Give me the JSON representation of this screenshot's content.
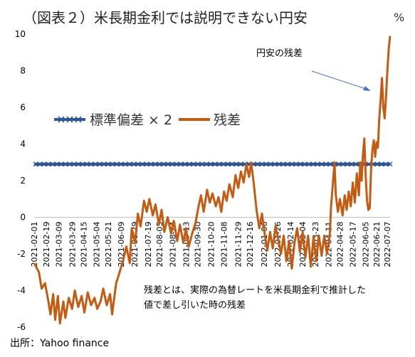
{
  "chart_data": {
    "type": "line",
    "title": "（図表２）米長期金利では説明できない円安",
    "unit": "%",
    "ylim": [
      -6,
      10
    ],
    "yticks": [
      "10",
      "8",
      "6",
      "4",
      "2",
      "0",
      "-2",
      "-4",
      "-6"
    ],
    "x_tick_labels": [
      "2021-02-01",
      "2021-02-19",
      "2021-03-09",
      "2021-03-29",
      "2021-04-15",
      "2021-05-04",
      "2021-05-21",
      "2021-06-09",
      "2021-06-29",
      "2021-07-19",
      "2021-08-05",
      "2021-08-24",
      "2021-09-13",
      "2021-09-30",
      "2021-10-20",
      "2021-11-08",
      "2021-11-29",
      "2021-12-16",
      "2022-01-06",
      "2022-01-26",
      "2022-02-14",
      "2022-03-04",
      "2022-03-23",
      "2022-04-11",
      "2022-04-28",
      "2022-05-17",
      "2022-06-05",
      "2022-06-21",
      "2022-07-07"
    ],
    "legend": {
      "placement": "upper-left"
    },
    "series": [
      {
        "name": "標準偏差 × 2",
        "color": "#2E5597",
        "marker": "x",
        "values": [
          2.9,
          2.9
        ]
      },
      {
        "name": "残差",
        "color": "#C55A11",
        "points": [
          [
            "2021-02-01",
            -2.5
          ],
          [
            "2021-02-08",
            -3.0
          ],
          [
            "2021-02-12",
            -3.9
          ],
          [
            "2021-02-17",
            -3.6
          ],
          [
            "2021-02-22",
            -4.6
          ],
          [
            "2021-02-25",
            -5.3
          ],
          [
            "2021-03-01",
            -4.2
          ],
          [
            "2021-03-04",
            -5.6
          ],
          [
            "2021-03-08",
            -4.3
          ],
          [
            "2021-03-11",
            -5.8
          ],
          [
            "2021-03-16",
            -4.6
          ],
          [
            "2021-03-19",
            -5.5
          ],
          [
            "2021-03-24",
            -4.4
          ],
          [
            "2021-03-29",
            -5.0
          ],
          [
            "2021-04-02",
            -4.0
          ],
          [
            "2021-04-07",
            -4.9
          ],
          [
            "2021-04-12",
            -4.3
          ],
          [
            "2021-04-16",
            -5.2
          ],
          [
            "2021-04-21",
            -4.1
          ],
          [
            "2021-04-26",
            -4.8
          ],
          [
            "2021-05-01",
            -4.4
          ],
          [
            "2021-05-05",
            -5.0
          ],
          [
            "2021-05-10",
            -4.6
          ],
          [
            "2021-05-14",
            -3.9
          ],
          [
            "2021-05-19",
            -4.8
          ],
          [
            "2021-05-24",
            -4.2
          ],
          [
            "2021-05-27",
            -5.3
          ],
          [
            "2021-06-02",
            -3.6
          ],
          [
            "2021-06-07",
            -3.0
          ],
          [
            "2021-06-12",
            -2.4
          ],
          [
            "2021-06-17",
            -1.6
          ],
          [
            "2021-06-22",
            -2.5
          ],
          [
            "2021-06-25",
            -0.6
          ],
          [
            "2021-06-30",
            -1.4
          ],
          [
            "2021-07-04",
            0.2
          ],
          [
            "2021-07-08",
            -0.5
          ],
          [
            "2021-07-13",
            0.9
          ],
          [
            "2021-07-17",
            0.3
          ],
          [
            "2021-07-21",
            1.0
          ],
          [
            "2021-07-26",
            0.1
          ],
          [
            "2021-07-30",
            0.7
          ],
          [
            "2021-08-04",
            -0.4
          ],
          [
            "2021-08-08",
            0.4
          ],
          [
            "2021-08-12",
            -0.8
          ],
          [
            "2021-08-17",
            0.0
          ],
          [
            "2021-08-22",
            -0.9
          ],
          [
            "2021-08-26",
            -0.2
          ],
          [
            "2021-08-31",
            -1.3
          ],
          [
            "2021-09-04",
            -0.4
          ],
          [
            "2021-09-09",
            -1.4
          ],
          [
            "2021-09-13",
            -0.6
          ],
          [
            "2021-09-17",
            -1.6
          ],
          [
            "2021-09-22",
            -0.9
          ],
          [
            "2021-09-27",
            -0.3
          ],
          [
            "2021-10-01",
            0.5
          ],
          [
            "2021-10-05",
            1.2
          ],
          [
            "2021-10-09",
            0.3
          ],
          [
            "2021-10-14",
            1.5
          ],
          [
            "2021-10-18",
            0.8
          ],
          [
            "2021-10-22",
            1.3
          ],
          [
            "2021-10-27",
            0.6
          ],
          [
            "2021-10-31",
            1.1
          ],
          [
            "2021-11-04",
            0.3
          ],
          [
            "2021-11-08",
            1.4
          ],
          [
            "2021-11-12",
            0.9
          ],
          [
            "2021-11-16",
            1.8
          ],
          [
            "2021-11-21",
            1.1
          ],
          [
            "2021-11-25",
            2.3
          ],
          [
            "2021-11-29",
            1.6
          ],
          [
            "2021-12-03",
            2.5
          ],
          [
            "2021-12-07",
            1.9
          ],
          [
            "2021-12-11",
            2.9
          ],
          [
            "2021-12-15",
            2.2
          ],
          [
            "2021-12-18",
            3.0
          ],
          [
            "2021-12-22",
            1.8
          ],
          [
            "2021-12-26",
            0.4
          ],
          [
            "2021-12-30",
            -0.6
          ],
          [
            "2022-01-03",
            0.2
          ],
          [
            "2022-01-07",
            -0.9
          ],
          [
            "2022-01-11",
            -1.8
          ],
          [
            "2022-01-15",
            -0.8
          ],
          [
            "2022-01-19",
            -1.7
          ],
          [
            "2022-01-23",
            -0.5
          ],
          [
            "2022-01-27",
            -1.2
          ],
          [
            "2022-01-31",
            -2.0
          ],
          [
            "2022-02-04",
            -1.0
          ],
          [
            "2022-02-08",
            -2.4
          ],
          [
            "2022-02-12",
            -1.3
          ],
          [
            "2022-02-16",
            -2.8
          ],
          [
            "2022-02-20",
            -1.4
          ],
          [
            "2022-02-24",
            -0.6
          ],
          [
            "2022-02-28",
            -1.9
          ],
          [
            "2022-03-04",
            -0.8
          ],
          [
            "2022-03-08",
            -2.2
          ],
          [
            "2022-03-12",
            -1.0
          ],
          [
            "2022-03-16",
            -2.7
          ],
          [
            "2022-03-20",
            -1.1
          ],
          [
            "2022-03-24",
            -2.4
          ],
          [
            "2022-03-28",
            -1.0
          ],
          [
            "2022-04-01",
            -2.1
          ],
          [
            "2022-04-05",
            -1.0
          ],
          [
            "2022-04-09",
            -2.0
          ],
          [
            "2022-04-13",
            -1.0
          ],
          [
            "2022-04-15",
            0.6
          ],
          [
            "2022-04-18",
            2.0
          ],
          [
            "2022-04-20",
            3.0
          ],
          [
            "2022-04-22",
            1.2
          ],
          [
            "2022-04-25",
            0.3
          ],
          [
            "2022-04-28",
            1.0
          ],
          [
            "2022-05-02",
            0.1
          ],
          [
            "2022-05-05",
            1.2
          ],
          [
            "2022-05-08",
            0.4
          ],
          [
            "2022-05-11",
            1.4
          ],
          [
            "2022-05-14",
            0.6
          ],
          [
            "2022-05-17",
            1.9
          ],
          [
            "2022-05-20",
            0.8
          ],
          [
            "2022-05-23",
            2.4
          ],
          [
            "2022-05-26",
            1.2
          ],
          [
            "2022-05-28",
            3.0
          ],
          [
            "2022-05-30",
            2.0
          ],
          [
            "2022-06-01",
            3.4
          ],
          [
            "2022-06-03",
            4.3
          ],
          [
            "2022-06-05",
            2.3
          ],
          [
            "2022-06-07",
            0.9
          ],
          [
            "2022-06-09",
            0.4
          ],
          [
            "2022-06-11",
            0.5
          ],
          [
            "2022-06-13",
            2.6
          ],
          [
            "2022-06-15",
            3.7
          ],
          [
            "2022-06-17",
            4.2
          ],
          [
            "2022-06-19",
            3.3
          ],
          [
            "2022-06-21",
            4.1
          ],
          [
            "2022-06-23",
            3.8
          ],
          [
            "2022-06-25",
            5.4
          ],
          [
            "2022-06-27",
            6.4
          ],
          [
            "2022-06-29",
            7.6
          ],
          [
            "2022-07-01",
            6.0
          ],
          [
            "2022-07-03",
            5.4
          ],
          [
            "2022-07-05",
            6.6
          ],
          [
            "2022-07-07",
            8.0
          ],
          [
            "2022-07-09",
            9.2
          ],
          [
            "2022-07-11",
            9.9
          ]
        ]
      }
    ],
    "annotation": "円安の残差",
    "note_lines": [
      "残差とは、実際の為替レートを米長期金利で推計した",
      "値で差し引いた時の残差"
    ],
    "source": "出所：Yahoo finance"
  }
}
